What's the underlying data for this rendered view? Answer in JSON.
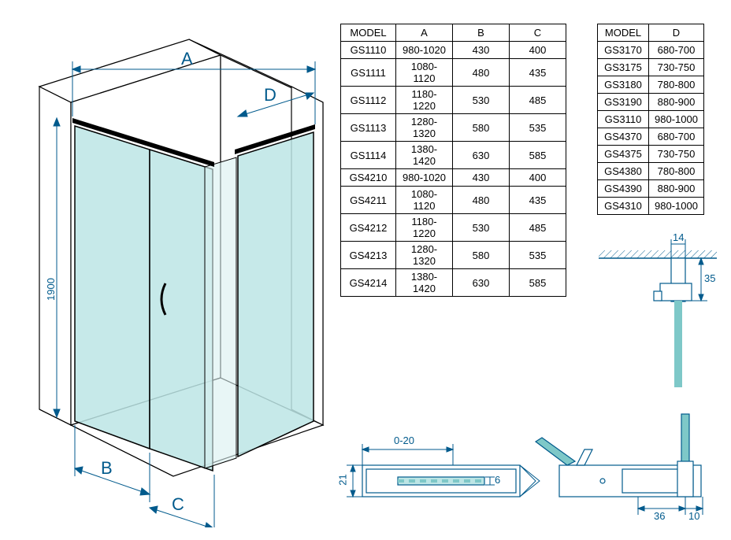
{
  "labels": {
    "A": "A",
    "B": "B",
    "C": "C",
    "D": "D",
    "height": "1900",
    "model": "MODEL",
    "d14": "14",
    "d35": "35",
    "d0_20": "0-20",
    "d21": "21",
    "d6": "6",
    "d36": "36",
    "d10": "10"
  },
  "table1": {
    "headers": [
      "MODEL",
      "A",
      "B",
      "C"
    ],
    "rows": [
      [
        "GS1110",
        "980-1020",
        "430",
        "400"
      ],
      [
        "GS1111",
        "1080-1120",
        "480",
        "435"
      ],
      [
        "GS1112",
        "1180-1220",
        "530",
        "485"
      ],
      [
        "GS1113",
        "1280-1320",
        "580",
        "535"
      ],
      [
        "GS1114",
        "1380-1420",
        "630",
        "585"
      ],
      [
        "GS4210",
        "980-1020",
        "430",
        "400"
      ],
      [
        "GS4211",
        "1080-1120",
        "480",
        "435"
      ],
      [
        "GS4212",
        "1180-1220",
        "530",
        "485"
      ],
      [
        "GS4213",
        "1280-1320",
        "580",
        "535"
      ],
      [
        "GS4214",
        "1380-1420",
        "630",
        "585"
      ]
    ]
  },
  "table2": {
    "headers": [
      "MODEL",
      "D"
    ],
    "rows": [
      [
        "GS3170",
        "680-700"
      ],
      [
        "GS3175",
        "730-750"
      ],
      [
        "GS3180",
        "780-800"
      ],
      [
        "GS3190",
        "880-900"
      ],
      [
        "GS3110",
        "980-1000"
      ],
      [
        "GS4370",
        "680-700"
      ],
      [
        "GS4375",
        "730-750"
      ],
      [
        "GS4380",
        "780-800"
      ],
      [
        "GS4390",
        "880-900"
      ],
      [
        "GS4310",
        "980-1000"
      ]
    ]
  },
  "colors": {
    "line": "#005a8c",
    "glass": "#bce5e5",
    "glass_dark": "#7ec8c8",
    "wall": "#ffffff",
    "wall_stroke": "#000000"
  }
}
